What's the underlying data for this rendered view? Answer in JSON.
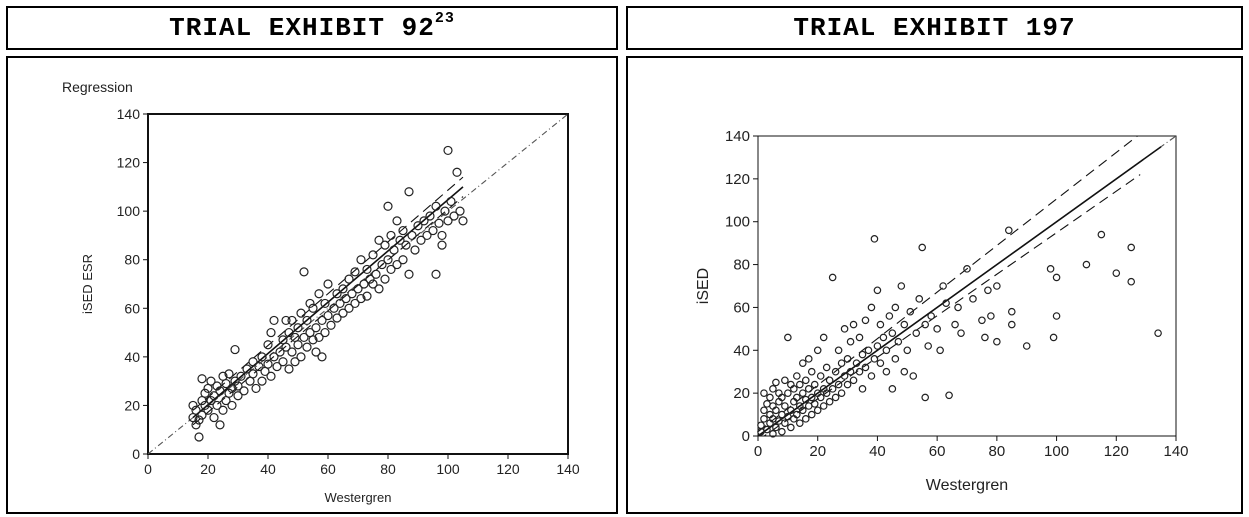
{
  "panels": [
    {
      "title": "TRIAL EXHIBIT 92",
      "superscript": "23"
    },
    {
      "title": "TRIAL EXHIBIT 197",
      "superscript": ""
    }
  ],
  "chart_data": [
    {
      "type": "scatter",
      "title": "Regression",
      "xlabel": "Westergren",
      "ylabel": "iSED ESR",
      "xlim": [
        0,
        140
      ],
      "ylim": [
        0,
        140
      ],
      "xticks": [
        "0",
        "20",
        "40",
        "60",
        "80",
        "100",
        "120",
        "140"
      ],
      "yticks": [
        "0",
        "20",
        "40",
        "60",
        "80",
        "100",
        "120",
        "140"
      ],
      "grid": false,
      "lines": [
        {
          "style": "dashdot",
          "x": [
            0,
            140
          ],
          "y": [
            0,
            140
          ]
        },
        {
          "style": "solid",
          "x": [
            15,
            105
          ],
          "y": [
            15,
            110
          ]
        },
        {
          "style": "dashed",
          "x": [
            15,
            105
          ],
          "y": [
            18,
            114
          ]
        },
        {
          "style": "dashed",
          "x": [
            15,
            105
          ],
          "y": [
            12,
            106
          ]
        }
      ],
      "points": [
        [
          15,
          20
        ],
        [
          15,
          15
        ],
        [
          16,
          12
        ],
        [
          16,
          18
        ],
        [
          17,
          7
        ],
        [
          17,
          14
        ],
        [
          18,
          16
        ],
        [
          18,
          22
        ],
        [
          18,
          31
        ],
        [
          19,
          20
        ],
        [
          19,
          25
        ],
        [
          20,
          18
        ],
        [
          20,
          27
        ],
        [
          21,
          22
        ],
        [
          21,
          30
        ],
        [
          22,
          15
        ],
        [
          22,
          24
        ],
        [
          23,
          20
        ],
        [
          23,
          28
        ],
        [
          24,
          12
        ],
        [
          24,
          26
        ],
        [
          25,
          18
        ],
        [
          25,
          32
        ],
        [
          26,
          22
        ],
        [
          26,
          29
        ],
        [
          27,
          25
        ],
        [
          27,
          33
        ],
        [
          28,
          20
        ],
        [
          28,
          27
        ],
        [
          29,
          30
        ],
        [
          29,
          43
        ],
        [
          30,
          24
        ],
        [
          30,
          28
        ],
        [
          31,
          32
        ],
        [
          32,
          26
        ],
        [
          33,
          35
        ],
        [
          34,
          30
        ],
        [
          35,
          33
        ],
        [
          35,
          38
        ],
        [
          36,
          27
        ],
        [
          37,
          36
        ],
        [
          38,
          30
        ],
        [
          38,
          40
        ],
        [
          39,
          34
        ],
        [
          40,
          37
        ],
        [
          40,
          45
        ],
        [
          41,
          32
        ],
        [
          41,
          50
        ],
        [
          42,
          40
        ],
        [
          42,
          55
        ],
        [
          43,
          36
        ],
        [
          44,
          42
        ],
        [
          45,
          38
        ],
        [
          45,
          47
        ],
        [
          46,
          44
        ],
        [
          46,
          55
        ],
        [
          47,
          35
        ],
        [
          47,
          50
        ],
        [
          48,
          42
        ],
        [
          48,
          55
        ],
        [
          49,
          38
        ],
        [
          49,
          48
        ],
        [
          50,
          45
        ],
        [
          50,
          52
        ],
        [
          51,
          40
        ],
        [
          51,
          58
        ],
        [
          52,
          48
        ],
        [
          52,
          75
        ],
        [
          53,
          44
        ],
        [
          53,
          55
        ],
        [
          54,
          50
        ],
        [
          54,
          62
        ],
        [
          55,
          47
        ],
        [
          55,
          60
        ],
        [
          56,
          52
        ],
        [
          56,
          42
        ],
        [
          57,
          48
        ],
        [
          57,
          66
        ],
        [
          58,
          55
        ],
        [
          58,
          40
        ],
        [
          59,
          50
        ],
        [
          59,
          62
        ],
        [
          60,
          57
        ],
        [
          60,
          70
        ],
        [
          61,
          53
        ],
        [
          62,
          60
        ],
        [
          63,
          56
        ],
        [
          63,
          66
        ],
        [
          64,
          62
        ],
        [
          65,
          58
        ],
        [
          65,
          68
        ],
        [
          66,
          64
        ],
        [
          67,
          60
        ],
        [
          67,
          72
        ],
        [
          68,
          66
        ],
        [
          69,
          62
        ],
        [
          69,
          75
        ],
        [
          70,
          68
        ],
        [
          71,
          64
        ],
        [
          71,
          80
        ],
        [
          72,
          70
        ],
        [
          73,
          65
        ],
        [
          73,
          76
        ],
        [
          74,
          72
        ],
        [
          75,
          70
        ],
        [
          75,
          82
        ],
        [
          76,
          74
        ],
        [
          77,
          88
        ],
        [
          77,
          68
        ],
        [
          78,
          78
        ],
        [
          79,
          72
        ],
        [
          79,
          86
        ],
        [
          80,
          80
        ],
        [
          80,
          102
        ],
        [
          81,
          76
        ],
        [
          81,
          90
        ],
        [
          82,
          84
        ],
        [
          83,
          78
        ],
        [
          83,
          96
        ],
        [
          84,
          88
        ],
        [
          85,
          80
        ],
        [
          85,
          92
        ],
        [
          86,
          86
        ],
        [
          87,
          74
        ],
        [
          87,
          108
        ],
        [
          88,
          90
        ],
        [
          89,
          84
        ],
        [
          90,
          94
        ],
        [
          91,
          88
        ],
        [
          92,
          96
        ],
        [
          93,
          90
        ],
        [
          94,
          98
        ],
        [
          95,
          92
        ],
        [
          96,
          74
        ],
        [
          96,
          102
        ],
        [
          97,
          95
        ],
        [
          98,
          86
        ],
        [
          98,
          90
        ],
        [
          99,
          100
        ],
        [
          100,
          96
        ],
        [
          100,
          125
        ],
        [
          101,
          104
        ],
        [
          102,
          98
        ],
        [
          103,
          116
        ],
        [
          104,
          100
        ],
        [
          105,
          96
        ]
      ]
    },
    {
      "type": "scatter",
      "title": "",
      "xlabel": "Westergren",
      "ylabel": "iSED",
      "xlim": [
        0,
        140
      ],
      "ylim": [
        0,
        140
      ],
      "xticks": [
        "0",
        "20",
        "40",
        "60",
        "80",
        "100",
        "120",
        "140"
      ],
      "yticks": [
        "0",
        "20",
        "40",
        "60",
        "80",
        "100",
        "120",
        "140"
      ],
      "grid": false,
      "lines": [
        {
          "style": "dashdot",
          "x": [
            0,
            140
          ],
          "y": [
            0,
            140
          ]
        },
        {
          "style": "solid",
          "x": [
            0,
            135
          ],
          "y": [
            0,
            135
          ]
        },
        {
          "style": "dashed",
          "x": [
            0,
            128
          ],
          "y": [
            2,
            141
          ]
        },
        {
          "style": "dashed",
          "x": [
            0,
            128
          ],
          "y": [
            -2,
            122
          ]
        }
      ],
      "points": [
        [
          1,
          2
        ],
        [
          1,
          5
        ],
        [
          2,
          8
        ],
        [
          2,
          12
        ],
        [
          2,
          20
        ],
        [
          3,
          3
        ],
        [
          3,
          15
        ],
        [
          4,
          6
        ],
        [
          4,
          10
        ],
        [
          4,
          18
        ],
        [
          5,
          1
        ],
        [
          5,
          8
        ],
        [
          5,
          14
        ],
        [
          5,
          22
        ],
        [
          6,
          4
        ],
        [
          6,
          12
        ],
        [
          6,
          25
        ],
        [
          7,
          7
        ],
        [
          7,
          16
        ],
        [
          7,
          20
        ],
        [
          8,
          2
        ],
        [
          8,
          10
        ],
        [
          8,
          18
        ],
        [
          9,
          6
        ],
        [
          9,
          14
        ],
        [
          9,
          26
        ],
        [
          10,
          9
        ],
        [
          10,
          20
        ],
        [
          10,
          46
        ],
        [
          11,
          4
        ],
        [
          11,
          12
        ],
        [
          11,
          24
        ],
        [
          12,
          8
        ],
        [
          12,
          16
        ],
        [
          12,
          22
        ],
        [
          13,
          10
        ],
        [
          13,
          18
        ],
        [
          13,
          28
        ],
        [
          14,
          6
        ],
        [
          14,
          14
        ],
        [
          14,
          24
        ],
        [
          15,
          12
        ],
        [
          15,
          20
        ],
        [
          15,
          34
        ],
        [
          16,
          8
        ],
        [
          16,
          17
        ],
        [
          16,
          26
        ],
        [
          17,
          14
        ],
        [
          17,
          22
        ],
        [
          17,
          36
        ],
        [
          18,
          10
        ],
        [
          18,
          18
        ],
        [
          18,
          30
        ],
        [
          19,
          15
        ],
        [
          19,
          24
        ],
        [
          20,
          12
        ],
        [
          20,
          20
        ],
        [
          20,
          40
        ],
        [
          21,
          18
        ],
        [
          21,
          28
        ],
        [
          22,
          14
        ],
        [
          22,
          22
        ],
        [
          22,
          46
        ],
        [
          23,
          20
        ],
        [
          23,
          32
        ],
        [
          24,
          16
        ],
        [
          24,
          26
        ],
        [
          25,
          22
        ],
        [
          25,
          74
        ],
        [
          26,
          18
        ],
        [
          26,
          30
        ],
        [
          27,
          24
        ],
        [
          27,
          40
        ],
        [
          28,
          20
        ],
        [
          28,
          34
        ],
        [
          29,
          28
        ],
        [
          29,
          50
        ],
        [
          30,
          24
        ],
        [
          30,
          36
        ],
        [
          31,
          30
        ],
        [
          31,
          44
        ],
        [
          32,
          26
        ],
        [
          32,
          52
        ],
        [
          33,
          34
        ],
        [
          34,
          30
        ],
        [
          34,
          46
        ],
        [
          35,
          22
        ],
        [
          35,
          38
        ],
        [
          36,
          32
        ],
        [
          36,
          54
        ],
        [
          37,
          40
        ],
        [
          38,
          28
        ],
        [
          38,
          60
        ],
        [
          39,
          36
        ],
        [
          39,
          92
        ],
        [
          40,
          42
        ],
        [
          40,
          68
        ],
        [
          41,
          34
        ],
        [
          41,
          52
        ],
        [
          42,
          46
        ],
        [
          43,
          30
        ],
        [
          43,
          40
        ],
        [
          44,
          56
        ],
        [
          45,
          22
        ],
        [
          45,
          48
        ],
        [
          46,
          36
        ],
        [
          46,
          60
        ],
        [
          47,
          44
        ],
        [
          48,
          70
        ],
        [
          49,
          30
        ],
        [
          49,
          52
        ],
        [
          50,
          40
        ],
        [
          51,
          58
        ],
        [
          52,
          28
        ],
        [
          53,
          48
        ],
        [
          54,
          64
        ],
        [
          55,
          88
        ],
        [
          56,
          52
        ],
        [
          56,
          18
        ],
        [
          57,
          42
        ],
        [
          58,
          56
        ],
        [
          60,
          50
        ],
        [
          61,
          40
        ],
        [
          62,
          70
        ],
        [
          63,
          62
        ],
        [
          64,
          19
        ],
        [
          66,
          52
        ],
        [
          67,
          60
        ],
        [
          68,
          48
        ],
        [
          70,
          78
        ],
        [
          72,
          64
        ],
        [
          75,
          54
        ],
        [
          76,
          46
        ],
        [
          77,
          68
        ],
        [
          78,
          56
        ],
        [
          80,
          70
        ],
        [
          80,
          44
        ],
        [
          84,
          96
        ],
        [
          85,
          52
        ],
        [
          85,
          58
        ],
        [
          90,
          42
        ],
        [
          98,
          78
        ],
        [
          99,
          46
        ],
        [
          100,
          56
        ],
        [
          100,
          74
        ],
        [
          110,
          80
        ],
        [
          115,
          94
        ],
        [
          120,
          76
        ],
        [
          125,
          72
        ],
        [
          125,
          88
        ],
        [
          134,
          48
        ]
      ]
    }
  ]
}
